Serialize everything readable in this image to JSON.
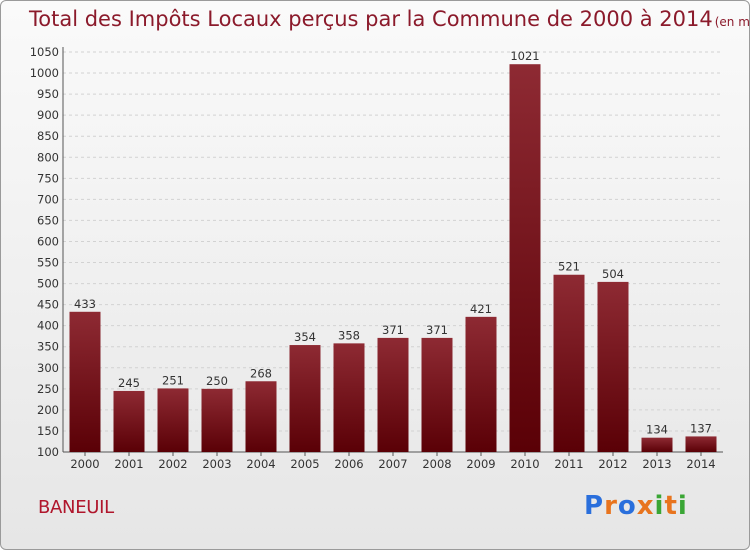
{
  "chart_data": {
    "type": "bar",
    "title": "Total des Impôts Locaux perçus par la Commune de 2000 à 2014",
    "subtitle": "(en milliers d'€)",
    "categories": [
      "2000",
      "2001",
      "2002",
      "2003",
      "2004",
      "2005",
      "2006",
      "2007",
      "2008",
      "2009",
      "2010",
      "2011",
      "2012",
      "2013",
      "2014"
    ],
    "values": [
      433,
      245,
      251,
      250,
      268,
      354,
      358,
      371,
      371,
      421,
      1021,
      521,
      504,
      134,
      137
    ],
    "ylim": [
      100,
      1050
    ],
    "yticks": [
      "100",
      "150",
      "200",
      "250",
      "300",
      "350",
      "400",
      "450",
      "500",
      "550",
      "600",
      "650",
      "700",
      "750",
      "800",
      "850",
      "900",
      "950",
      "1000",
      "1050"
    ],
    "grid": true,
    "bar_color": "#7a0c18"
  },
  "footer": {
    "commune": "BANEUIL",
    "logo_letters": [
      "P",
      "r",
      "o",
      "x",
      "i",
      "t",
      "i"
    ],
    "logo_colors": [
      "#2a6fdc",
      "#e8741e",
      "#2a6fdc",
      "#e8741e",
      "#3aa635",
      "#e8741e",
      "#3aa635"
    ]
  }
}
